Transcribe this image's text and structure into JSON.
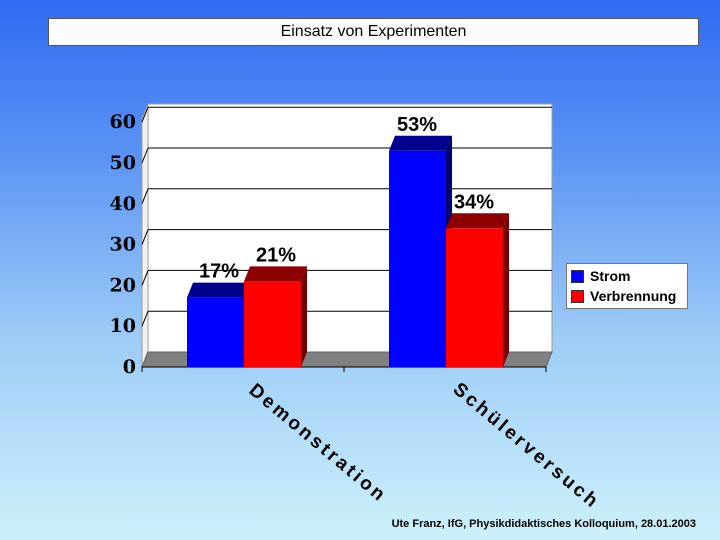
{
  "title": "Einsatz von Experimenten",
  "footer": "Ute Franz, IfG, Physikdidaktisches Kolloquium, 28.01.2003",
  "chart_data": {
    "type": "bar",
    "title": "Einsatz von Experimenten",
    "categories": [
      "Demonstration",
      "Schülerversuch"
    ],
    "series": [
      {
        "name": "Strom",
        "values": [
          17,
          53
        ],
        "labels": [
          "17%",
          "53%"
        ],
        "color": "#0000ff"
      },
      {
        "name": "Verbrennung",
        "values": [
          21,
          34
        ],
        "labels": [
          "21%",
          "34%"
        ],
        "color": "#ff0000"
      }
    ],
    "yticks": [
      0,
      10,
      20,
      30,
      40,
      50,
      60
    ],
    "ylim": [
      0,
      60
    ],
    "xlabel": "",
    "ylabel": "",
    "grid": true,
    "legend": "right",
    "colors": {
      "plot_background": "#ffffff",
      "floor": "#808080",
      "grid": "#000000"
    }
  }
}
